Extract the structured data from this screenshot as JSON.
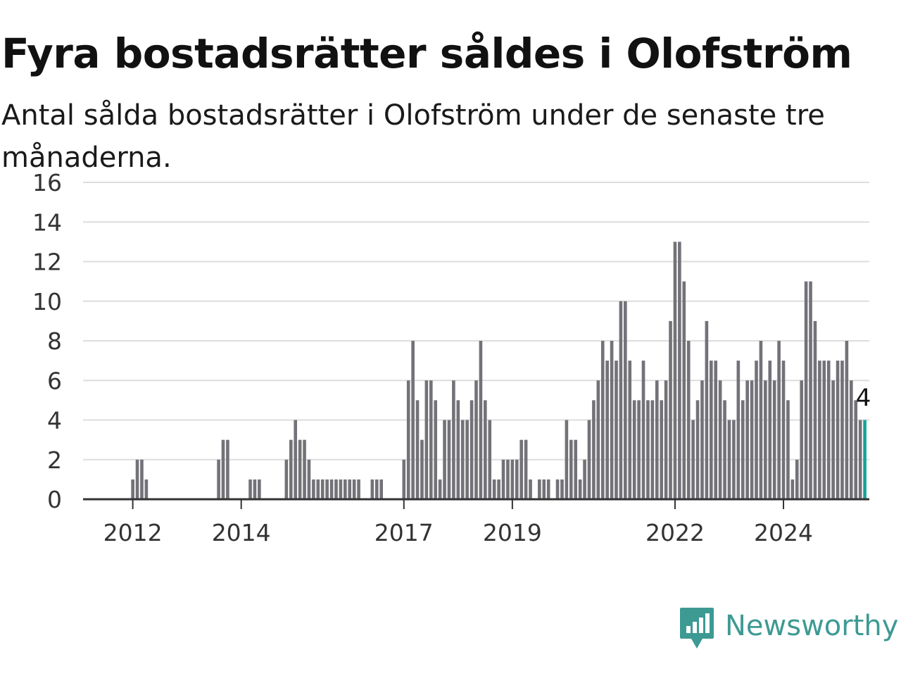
{
  "title": "Fyra bostadsrätter såldes i Olofström",
  "subtitle": "Antal sålda bostadsrätter i Olofström under de senaste tre månaderna.",
  "brand": {
    "name": "Newsworthy",
    "color": "#3d9a93",
    "icon": "newsworthy-logo-icon"
  },
  "colors": {
    "bar": "#737278",
    "highlight": "#14a39a",
    "grid": "#dddddd",
    "axis": "#333333"
  },
  "chart_data": {
    "type": "bar",
    "ylim": [
      0,
      16
    ],
    "yticks": [
      0,
      2,
      4,
      6,
      8,
      10,
      12,
      14,
      16
    ],
    "xlim": [
      "2011-02",
      "2025-08"
    ],
    "xticks": [
      {
        "label": "2012",
        "date": "2012-01"
      },
      {
        "label": "2014",
        "date": "2014-01"
      },
      {
        "label": "2017",
        "date": "2017-01"
      },
      {
        "label": "2019",
        "date": "2019-01"
      },
      {
        "label": "2022",
        "date": "2022-01"
      },
      {
        "label": "2024",
        "date": "2024-01"
      }
    ],
    "grid": true,
    "highlight_last": true,
    "last_label": "4",
    "series": [
      {
        "start": "2011-03",
        "values": [
          0,
          0,
          0,
          0,
          0,
          0,
          0,
          0,
          0,
          0,
          1,
          2,
          2,
          1,
          0,
          0,
          0,
          0,
          0,
          0,
          0,
          0,
          0,
          0,
          0,
          0,
          0,
          0,
          0,
          2,
          3,
          3,
          0,
          0,
          0,
          0,
          1,
          1,
          1,
          0,
          0,
          0,
          0,
          0,
          2,
          3,
          4,
          3,
          3,
          2,
          1,
          1,
          1,
          1,
          1,
          1,
          1,
          1,
          1,
          1,
          1,
          0,
          0,
          1,
          1,
          1,
          0,
          0,
          0,
          0,
          2,
          6,
          8,
          5,
          3,
          6,
          6,
          5,
          1,
          4,
          4,
          6,
          5,
          4,
          4,
          5,
          6,
          8,
          5,
          4,
          1,
          1,
          2,
          2,
          2,
          2,
          3,
          3,
          1,
          0,
          1,
          1,
          1,
          0,
          1,
          1,
          4,
          3,
          3,
          1,
          2,
          4,
          5,
          6,
          8,
          7,
          8,
          7,
          10,
          10,
          7,
          5,
          5,
          7,
          5,
          5,
          6,
          5,
          6,
          9,
          13,
          13,
          11,
          8,
          4,
          5,
          6,
          9,
          7,
          7,
          6,
          5,
          4,
          4,
          7,
          5,
          6,
          6,
          7,
          8,
          6,
          7,
          6,
          8,
          7,
          5,
          1,
          2,
          6,
          11,
          11,
          9,
          7,
          7,
          7,
          6,
          7,
          7,
          8,
          6,
          5,
          4,
          4
        ]
      }
    ]
  }
}
